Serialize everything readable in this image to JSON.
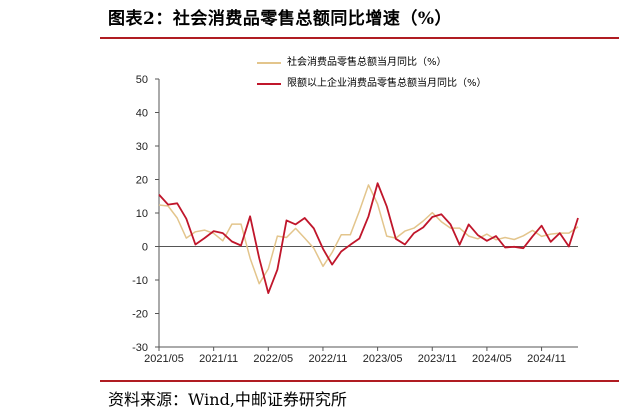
{
  "title": "图表2：社会消费品零售总额同比增速（%）",
  "source": "资料来源：Wind,中邮证券研究所",
  "chart_data": {
    "type": "line",
    "x": [
      "2021/05",
      "2021/06",
      "2021/07",
      "2021/08",
      "2021/09",
      "2021/10",
      "2021/11",
      "2021/12",
      "2022/01",
      "2022/02",
      "2022/03",
      "2022/04",
      "2022/05",
      "2022/06",
      "2022/07",
      "2022/08",
      "2022/09",
      "2022/10",
      "2022/11",
      "2022/12",
      "2023/01",
      "2023/02",
      "2023/03",
      "2023/04",
      "2023/05",
      "2023/06",
      "2023/07",
      "2023/08",
      "2023/09",
      "2023/10",
      "2023/11",
      "2023/12",
      "2024/01",
      "2024/02",
      "2024/03",
      "2024/04",
      "2024/05",
      "2024/06",
      "2024/07",
      "2024/08",
      "2024/09",
      "2024/10",
      "2024/11",
      "2024/12",
      "2025/01",
      "2025/02",
      "2025/03"
    ],
    "xticks": [
      "2021/05",
      "2021/11",
      "2022/05",
      "2022/11",
      "2023/05",
      "2023/11",
      "2024/05",
      "2024/11"
    ],
    "ylim": [
      -30,
      50
    ],
    "yticks": [
      -30,
      -20,
      -10,
      0,
      10,
      20,
      30,
      40,
      50
    ],
    "series": [
      {
        "name": "社会消费品零售总额当月同比（%）",
        "color": "#e3c58c",
        "values": [
          12.4,
          12.1,
          8.5,
          2.5,
          4.4,
          4.9,
          3.9,
          1.7,
          6.7,
          6.7,
          -3.5,
          -11.1,
          -6.7,
          3.1,
          2.7,
          5.4,
          2.5,
          -0.5,
          -5.9,
          -1.8,
          3.5,
          3.5,
          10.6,
          18.4,
          12.7,
          3.1,
          2.5,
          4.6,
          5.5,
          7.6,
          10.1,
          7.4,
          5.5,
          5.5,
          3.1,
          2.3,
          3.7,
          2.0,
          2.7,
          2.1,
          3.2,
          4.8,
          3.0,
          3.7,
          4.0,
          4.0,
          5.9
        ]
      },
      {
        "name": "限额以上企业消费品零售总额当月同比（%）",
        "color": "#c0162b",
        "values": [
          15.5,
          12.5,
          12.9,
          8.3,
          0.6,
          2.5,
          4.6,
          4.0,
          1.5,
          0.3,
          9.0,
          -3.5,
          -13.9,
          -6.9,
          7.8,
          6.6,
          8.5,
          5.4,
          -0.7,
          -5.4,
          -1.5,
          0.5,
          2.4,
          9.0,
          18.9,
          12.0,
          2.3,
          0.6,
          4.0,
          5.7,
          8.8,
          9.6,
          6.6,
          0.5,
          6.6,
          3.4,
          1.7,
          3.1,
          -0.3,
          -0.1,
          -0.5,
          3.0,
          6.2,
          1.4,
          4.0,
          0.0,
          8.5
        ]
      }
    ],
    "legend_position": "top-center"
  }
}
